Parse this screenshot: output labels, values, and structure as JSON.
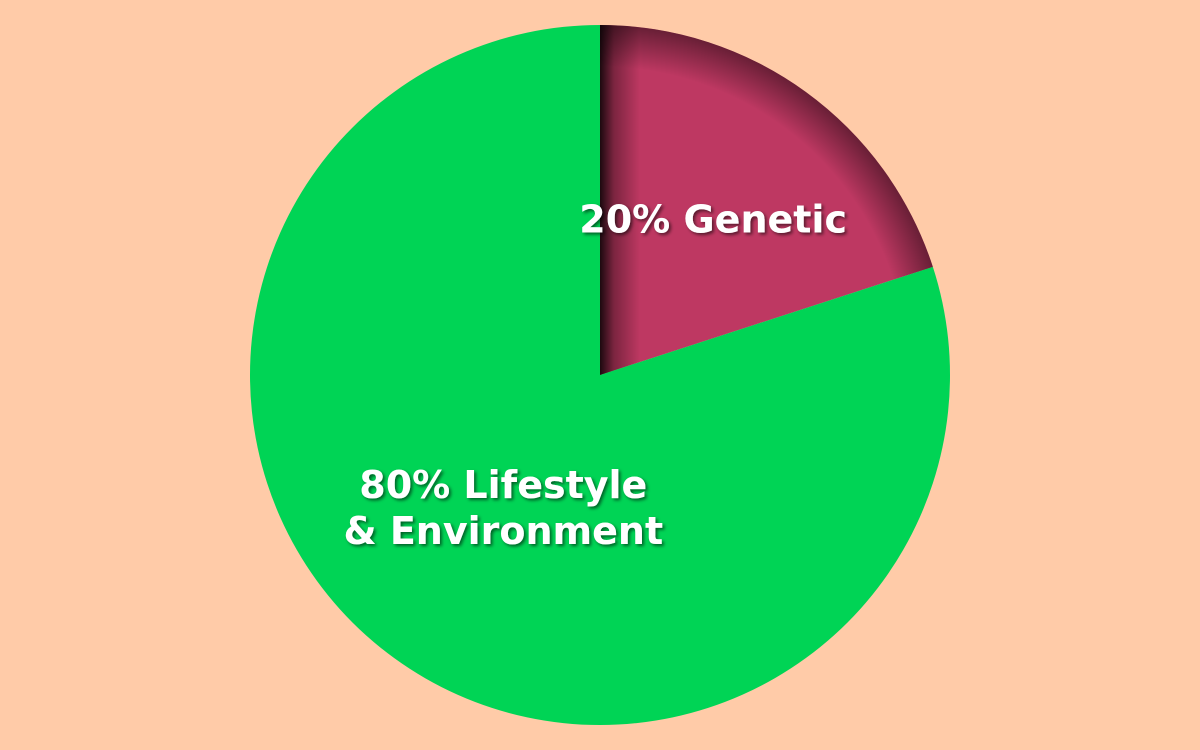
{
  "background_color": "#FFCBA8",
  "chart_data": {
    "type": "pie",
    "start_angle_deg": 0,
    "direction": "clockwise",
    "slices": [
      {
        "label_lines": [
          "20% Genetic"
        ],
        "value": 20,
        "color": "#BE3862"
      },
      {
        "label_lines": [
          "80% Lifestyle",
          "& Environment"
        ],
        "value": 80,
        "color": "#00D455"
      }
    ]
  }
}
